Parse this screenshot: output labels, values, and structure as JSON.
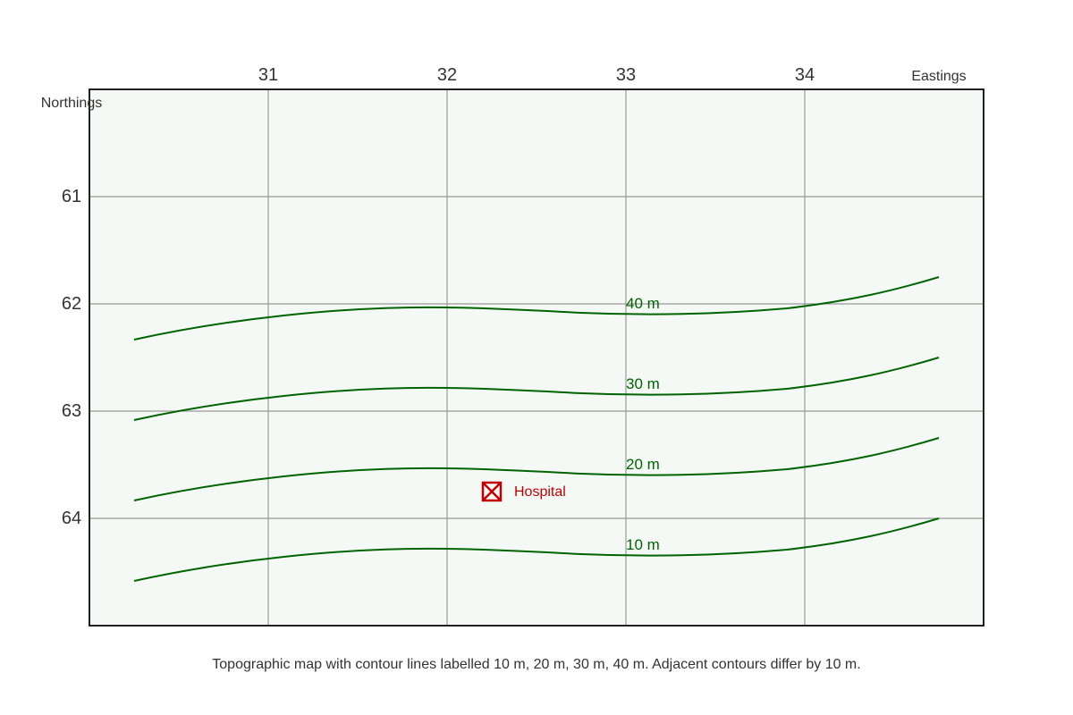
{
  "map": {
    "eastings_title": "Eastings",
    "northings_title": "Northings",
    "eastings": [
      "31",
      "32",
      "33",
      "34"
    ],
    "northings": [
      "61",
      "62",
      "63",
      "64"
    ],
    "contours": [
      {
        "label": "40 m",
        "elevation_m": 40
      },
      {
        "label": "30 m",
        "elevation_m": 30
      },
      {
        "label": "20 m",
        "elevation_m": 20
      },
      {
        "label": "10 m",
        "elevation_m": 10
      }
    ],
    "features": [
      {
        "label": "Hospital",
        "icon": "hospital-icon",
        "color": "#c00000"
      }
    ],
    "colors": {
      "contour": "#006400",
      "background": "#f5f9f5",
      "grid": "#999999",
      "frame": "#222222"
    }
  },
  "caption": "Topographic map with contour lines labelled 10 m, 20 m, 30 m, 40 m. Adjacent contours differ by 10 m."
}
